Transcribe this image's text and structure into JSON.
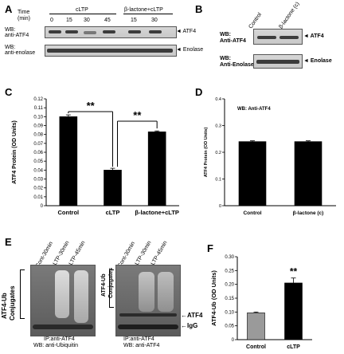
{
  "panelA": {
    "letter": "A",
    "time_label": "Time",
    "min_label": "(min)",
    "group1": "cLTP",
    "group2": "β-lactone+cLTP",
    "times": [
      "0",
      "15",
      "30",
      "45",
      "15",
      "30"
    ],
    "wb1": "WB:",
    "wb1b": "anti-ATF4",
    "wb2": "WB:",
    "wb2b": "anti-enolase",
    "arrow1": "◄ ATF4",
    "arrow2": "◄ Enolase"
  },
  "panelB": {
    "letter": "B",
    "col1": "Control",
    "col2": "β-lactone (c)",
    "wb1": "WB:",
    "wb1b": "Anti-ATF4",
    "wb2": "WB:",
    "wb2b": "Anti-Enolase",
    "arrow1": "◄ ATF4",
    "arrow2": "◄ Enolase"
  },
  "panelE": {
    "letter": "E",
    "lanes_left": [
      "Cont-30min",
      "cLTP-30min",
      "cLTP-45min"
    ],
    "lanes_right": [
      "Cont-30min",
      "cLTP-30min",
      "cLTP-45min"
    ],
    "side_label_1": "ATF4-Ub",
    "side_label_2": "Conjugates",
    "mid_label_1": "ATF4-Ub",
    "mid_label_2": "Conjugates",
    "atf4": "ATF4",
    "igg": "IgG",
    "left_caption_1": "IP:anti-ATF4",
    "left_caption_2": "WB: anti-Ubiquitin",
    "right_caption_1": "IP:anti-ATF4",
    "right_caption_2": "WB: anti-ATF4"
  },
  "chart_data": [
    {
      "panel": "C",
      "type": "bar",
      "categories": [
        "Control",
        "cLTP",
        "β-lactone+cLTP"
      ],
      "values": [
        0.1,
        0.04,
        0.083
      ],
      "errors": [
        0.002,
        0.002,
        0.001
      ],
      "ylabel": "ATF4 Protein (OD Units)",
      "ylim": [
        0,
        0.12
      ],
      "yticks": [
        "0",
        "0.01",
        "0.02",
        "0.03",
        "0.04",
        "0.05",
        "0.06",
        "0.07",
        "0.08",
        "0.09",
        "0.10",
        "0.11",
        "0.12"
      ],
      "significance": [
        "**",
        "**"
      ],
      "bar_color": "#000000"
    },
    {
      "panel": "D",
      "type": "bar",
      "title": "WB: Anti-ATF4",
      "categories": [
        "Control",
        "β-lactone (c)"
      ],
      "values": [
        0.24,
        0.24
      ],
      "errors": [
        0.003,
        0.003
      ],
      "ylabel": "ATF4 Protein (OD Units)",
      "ylim": [
        0,
        0.4
      ],
      "yticks": [
        "0",
        "0.1",
        "0.2",
        "0.3",
        "0.4"
      ],
      "bar_color": "#000000"
    },
    {
      "panel": "F",
      "type": "bar",
      "categories": [
        "Control",
        "cLTP"
      ],
      "values": [
        0.097,
        0.205
      ],
      "errors": [
        0.003,
        0.018
      ],
      "ylabel": "ATF4-Ub (OD Units)",
      "ylim": [
        0,
        0.3
      ],
      "yticks": [
        "0",
        "0.05",
        "0.10",
        "0.15",
        "0.20",
        "0.25",
        "0.30"
      ],
      "significance": [
        "**"
      ],
      "bar_colors": [
        "#9a9a9a",
        "#000000"
      ]
    }
  ]
}
